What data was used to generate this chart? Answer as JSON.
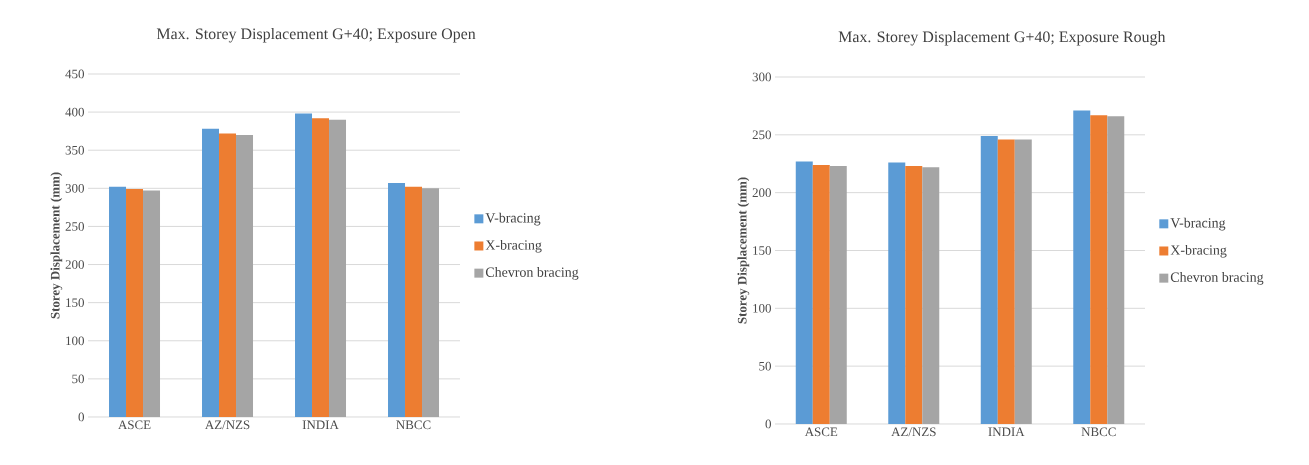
{
  "chart_data": [
    {
      "type": "bar",
      "title": "Max. Storey Displacement G+40; Exposure Open",
      "ylabel": "Storey Displacement (mm)",
      "categories": [
        "ASCE",
        "AZ/NZS",
        "INDIA",
        "NBCC"
      ],
      "series": [
        {
          "name": "V-bracing",
          "color": "#5b9bd5",
          "values": [
            302,
            378,
            398,
            307
          ]
        },
        {
          "name": "X-bracing",
          "color": "#ed7d31",
          "values": [
            299,
            372,
            392,
            302
          ]
        },
        {
          "name": "Chevron bracing",
          "color": "#a5a5a5",
          "values": [
            297,
            370,
            390,
            300
          ]
        }
      ],
      "ylim": [
        0,
        450
      ],
      "yticks": [
        0,
        50,
        100,
        150,
        200,
        250,
        300,
        350,
        400,
        450
      ],
      "grid": "y",
      "legend": "right"
    },
    {
      "type": "bar",
      "title": "Max. Storey Displacement G+40; Exposure Rough",
      "ylabel": "Storey Displacement (mm)",
      "categories": [
        "ASCE",
        "AZ/NZS",
        "INDIA",
        "NBCC"
      ],
      "series": [
        {
          "name": "V-bracing",
          "color": "#5b9bd5",
          "values": [
            227,
            226,
            249,
            271
          ]
        },
        {
          "name": "X-bracing",
          "color": "#ed7d31",
          "values": [
            224,
            223,
            246,
            267
          ]
        },
        {
          "name": "Chevron bracing",
          "color": "#a5a5a5",
          "values": [
            223,
            222,
            246,
            266
          ]
        }
      ],
      "ylim": [
        0,
        300
      ],
      "yticks": [
        0,
        50,
        100,
        150,
        200,
        250,
        300
      ],
      "grid": "y",
      "legend": "right"
    }
  ]
}
